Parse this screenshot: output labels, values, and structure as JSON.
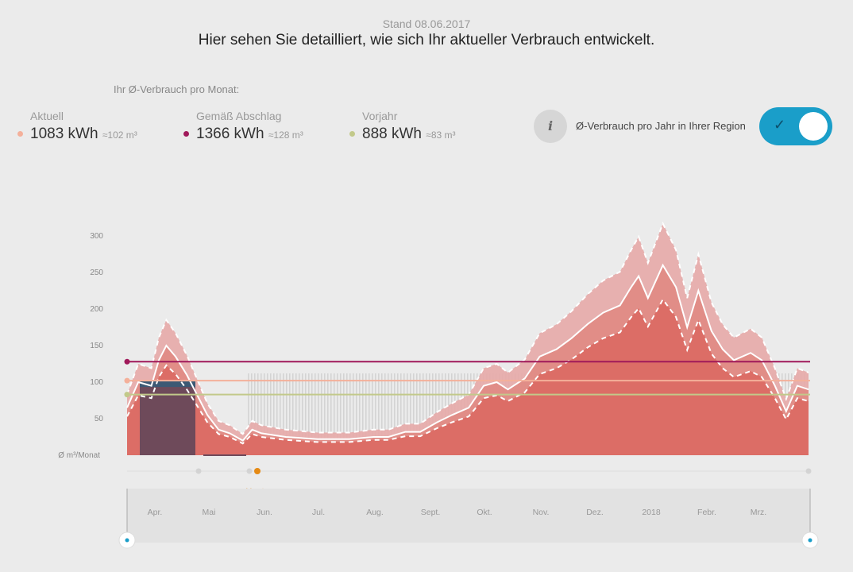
{
  "header": {
    "stand": "Stand 08.06.2017",
    "headline": "Hier sehen Sie detailliert, wie sich Ihr aktueller Verbrauch entwickelt."
  },
  "summary": {
    "title": "Ihr Ø-Verbrauch pro Monat:",
    "items": [
      {
        "label": "Aktuell",
        "value": "1083 kWh",
        "approx": "≈102 m³",
        "color": "#f4b09a"
      },
      {
        "label": "Gemäß Abschlag",
        "value": "1366 kWh",
        "approx": "≈128 m³",
        "color": "#a0195a"
      },
      {
        "label": "Vorjahr",
        "value": "888 kWh",
        "approx": "≈83 m³",
        "color": "#c2c98a"
      }
    ]
  },
  "region_toggle": {
    "info_icon": "i",
    "label": "Ø-Verbrauch pro Jahr in Ihrer Region",
    "checked": true,
    "check": "✓"
  },
  "chart_data": {
    "type": "area",
    "ylabel": "Ø m³/Monat",
    "ylim": [
      0,
      300
    ],
    "yticks": [
      50,
      100,
      150,
      200,
      250,
      300
    ],
    "months": [
      "Apr.",
      "Mai",
      "Jun.",
      "Jul.",
      "Aug.",
      "Sept.",
      "Okt.",
      "Nov.",
      "Dez.",
      "2018",
      "Febr.",
      "Mrz."
    ],
    "today_label": "Heute",
    "today_day": 68,
    "x_days": [
      0,
      6,
      13,
      17,
      21,
      26,
      32,
      36,
      43,
      49,
      55,
      62,
      67,
      72,
      85,
      102,
      119,
      132,
      140,
      149,
      157,
      166,
      174,
      183,
      191,
      198,
      204,
      213,
      221,
      230,
      238,
      247,
      255,
      264,
      270,
      274,
      279,
      287,
      294,
      300,
      306,
      313,
      319,
      325,
      334,
      340,
      347,
      353,
      359,
      365
    ],
    "series": [
      {
        "name": "upper",
        "values": [
          83,
          125,
          119,
          161,
          185,
          167,
          137,
          113,
          71,
          47,
          41,
          29,
          47,
          41,
          35,
          31,
          31,
          35,
          35,
          43,
          43,
          59,
          71,
          83,
          119,
          125,
          113,
          131,
          167,
          179,
          197,
          221,
          239,
          251,
          281,
          299,
          263,
          317,
          281,
          215,
          275,
          209,
          179,
          161,
          173,
          161,
          119,
          77,
          119,
          113
        ]
      },
      {
        "name": "mid",
        "values": [
          65,
          100,
          95,
          130,
          150,
          135,
          110,
          90,
          55,
          35,
          30,
          20,
          35,
          30,
          25,
          22,
          22,
          25,
          25,
          32,
          32,
          45,
          55,
          65,
          95,
          100,
          90,
          105,
          135,
          145,
          160,
          180,
          195,
          205,
          230,
          245,
          215,
          260,
          230,
          175,
          225,
          170,
          145,
          130,
          140,
          130,
          95,
          60,
          95,
          90
        ]
      },
      {
        "name": "lower",
        "values": [
          53,
          82,
          78,
          107,
          123,
          111,
          90,
          74,
          45,
          29,
          25,
          16,
          29,
          25,
          21,
          18,
          18,
          21,
          21,
          26,
          26,
          37,
          45,
          53,
          78,
          82,
          74,
          86,
          111,
          119,
          131,
          148,
          160,
          168,
          189,
          201,
          176,
          213,
          189,
          144,
          185,
          139,
          119,
          107,
          115,
          107,
          78,
          49,
          78,
          74
        ]
      }
    ],
    "reference_lines": [
      {
        "name": "Gemäß Abschlag",
        "value": 128,
        "color": "#a0195a"
      },
      {
        "name": "Aktuell",
        "value": 102,
        "color": "#f4b09a"
      },
      {
        "name": "Vorjahr",
        "value": 83,
        "color": "#c2c98a"
      }
    ],
    "region_avg": 112,
    "selected_month": {
      "label": "Apr.",
      "value": 102
    }
  }
}
